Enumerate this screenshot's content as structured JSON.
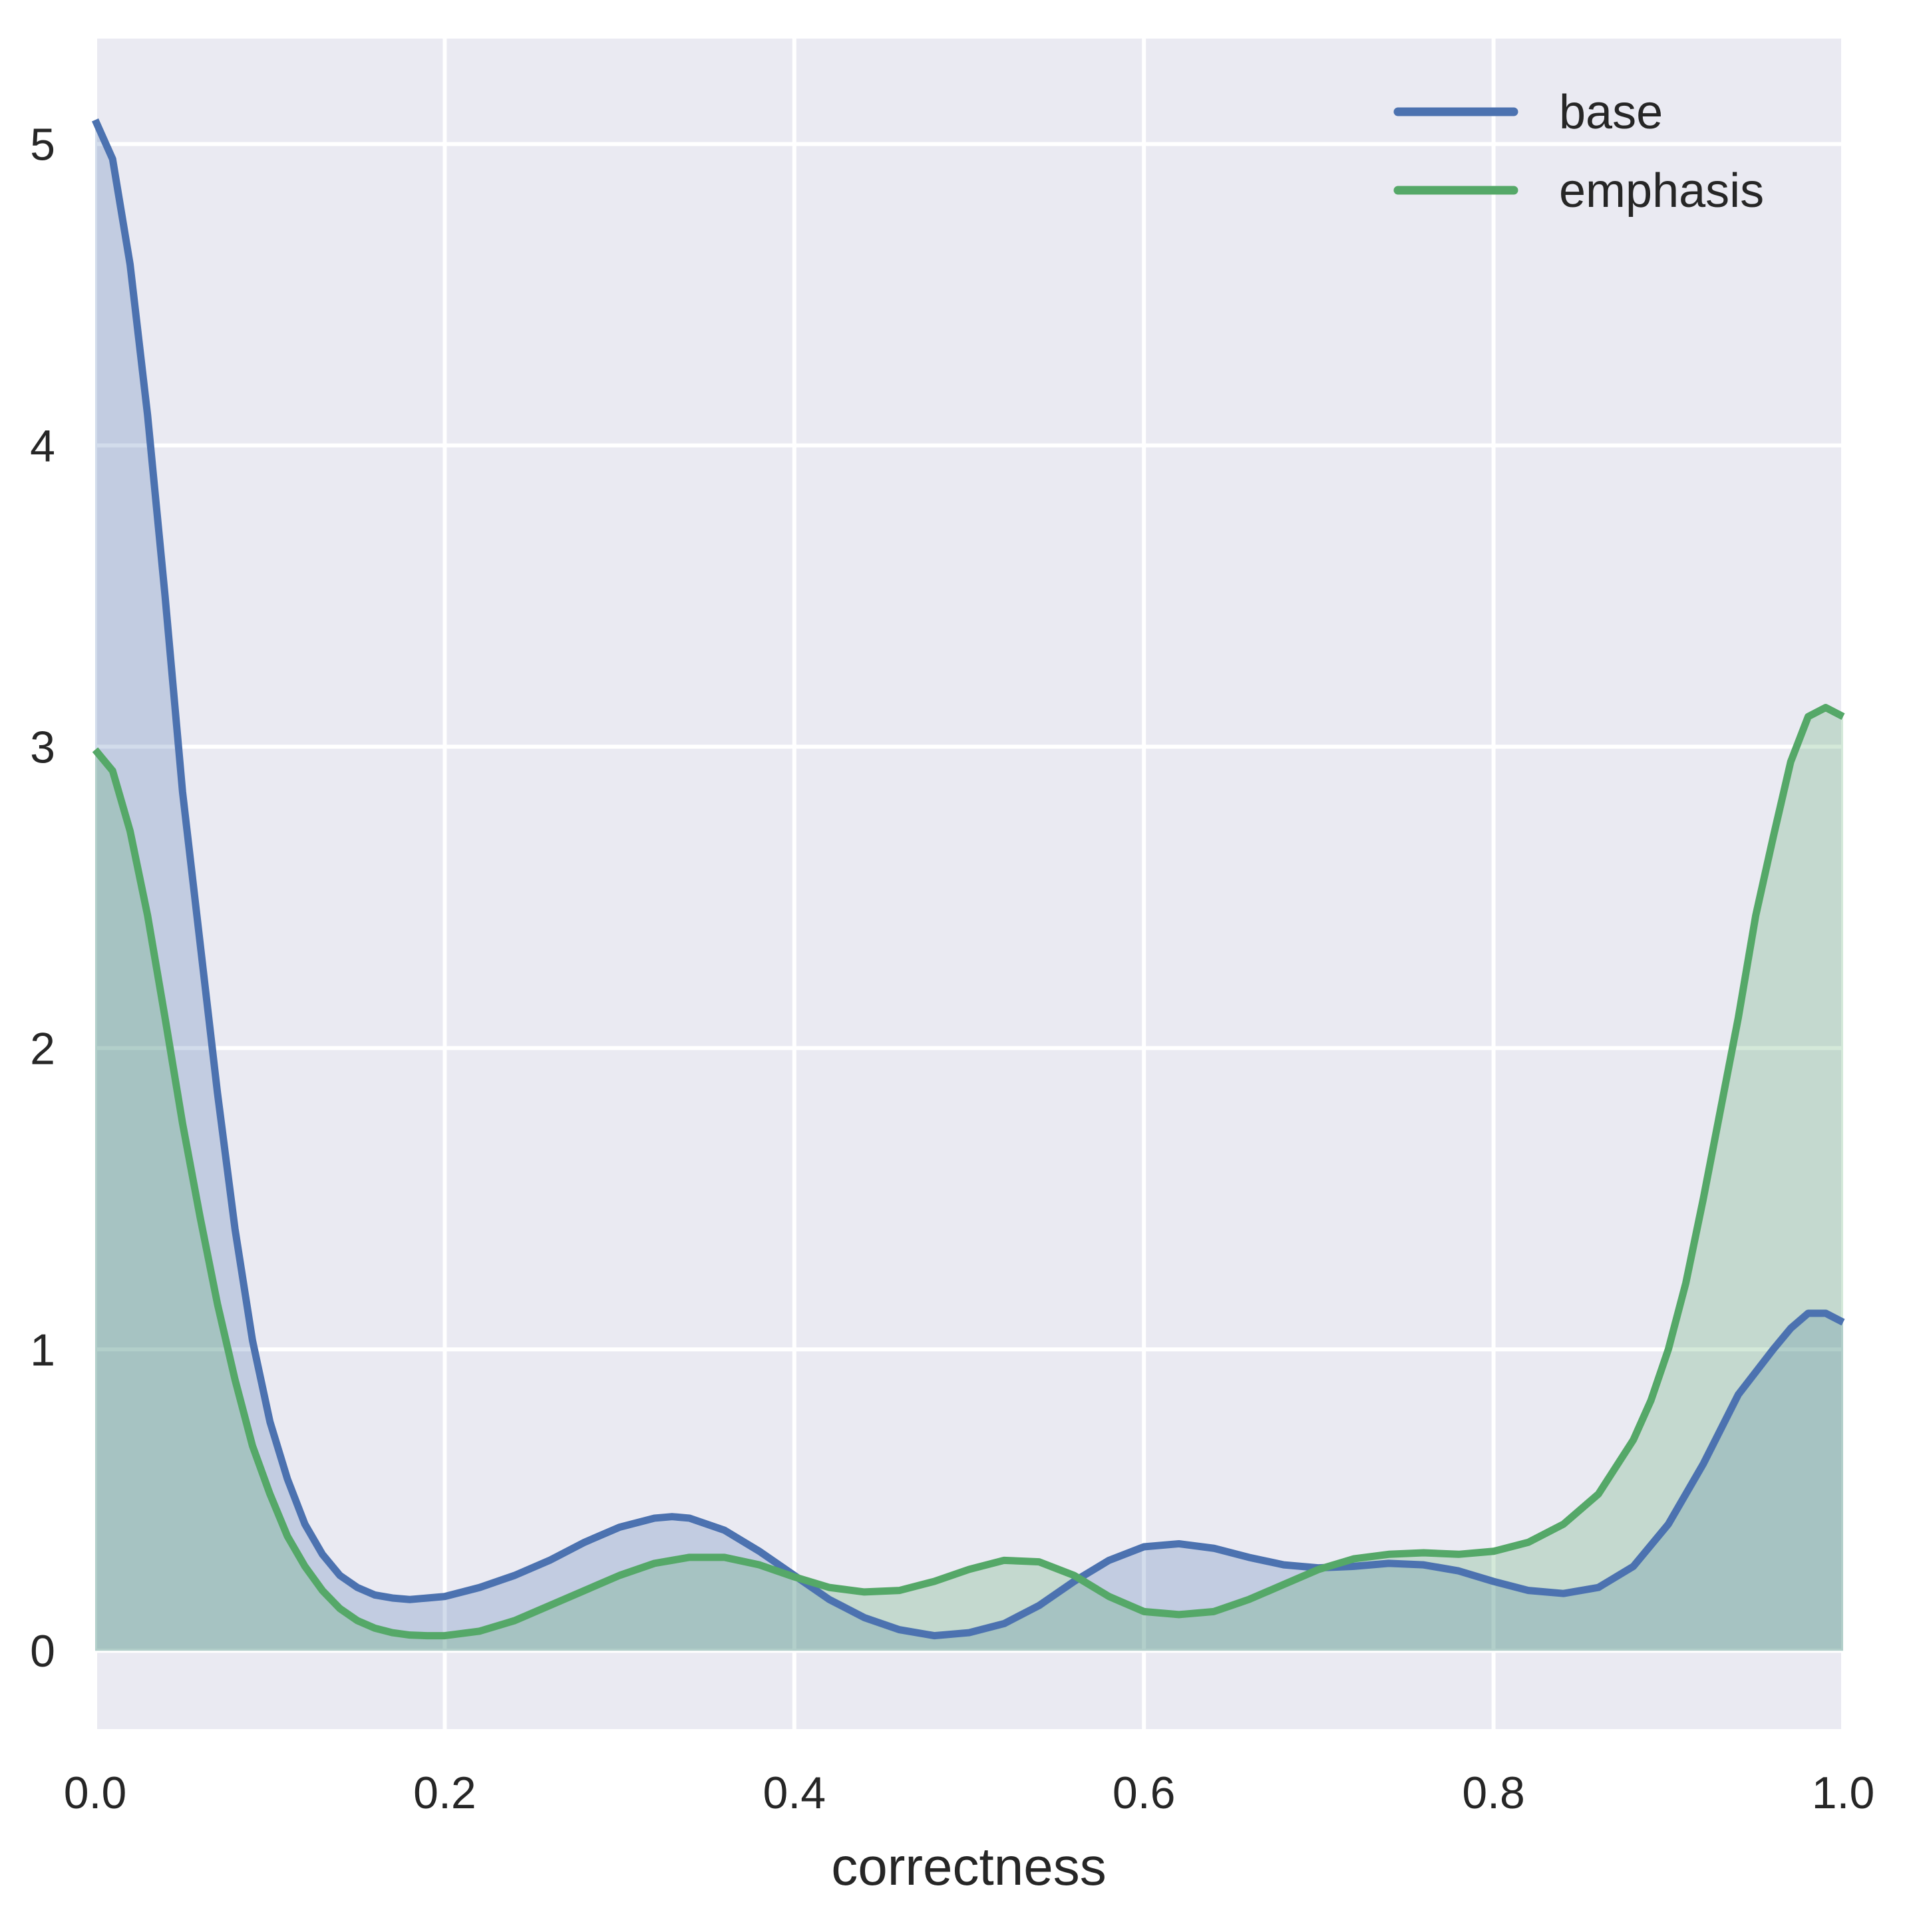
{
  "chart_data": {
    "type": "area",
    "xlabel": "correctness",
    "ylabel": "",
    "xlim": [
      0.0,
      1.0
    ],
    "ylim": [
      -0.26,
      5.35
    ],
    "x_ticks": [
      "0.0",
      "0.2",
      "0.4",
      "0.6",
      "0.8",
      "1.0"
    ],
    "y_ticks": [
      "0",
      "1",
      "2",
      "3",
      "4",
      "5"
    ],
    "grid": true,
    "legend_position": "top-right",
    "colors": {
      "background": "#EAEAF2",
      "grid": "#FFFFFF",
      "base": "#4C72B0",
      "emphasis": "#55A868",
      "text": "#262626"
    },
    "series": [
      {
        "name": "base",
        "x": [
          0,
          0.01,
          0.02,
          0.03,
          0.04,
          0.05,
          0.06,
          0.07,
          0.08,
          0.09,
          0.1,
          0.11,
          0.12,
          0.13,
          0.14,
          0.15,
          0.16,
          0.17,
          0.18,
          0.19,
          0.2,
          0.22,
          0.24,
          0.26,
          0.28,
          0.3,
          0.32,
          0.33,
          0.34,
          0.36,
          0.38,
          0.4,
          0.42,
          0.44,
          0.46,
          0.48,
          0.5,
          0.52,
          0.54,
          0.56,
          0.58,
          0.6,
          0.62,
          0.64,
          0.66,
          0.68,
          0.7,
          0.72,
          0.74,
          0.76,
          0.78,
          0.8,
          0.82,
          0.84,
          0.86,
          0.88,
          0.9,
          0.92,
          0.94,
          0.96,
          0.97,
          0.98,
          0.99,
          1.0
        ],
        "y": [
          5.08,
          4.95,
          4.6,
          4.1,
          3.5,
          2.85,
          2.35,
          1.85,
          1.4,
          1.03,
          0.76,
          0.57,
          0.42,
          0.32,
          0.25,
          0.21,
          0.185,
          0.175,
          0.17,
          0.175,
          0.18,
          0.21,
          0.25,
          0.3,
          0.36,
          0.41,
          0.44,
          0.445,
          0.44,
          0.4,
          0.33,
          0.25,
          0.17,
          0.11,
          0.07,
          0.05,
          0.06,
          0.09,
          0.15,
          0.23,
          0.3,
          0.345,
          0.355,
          0.34,
          0.31,
          0.285,
          0.275,
          0.28,
          0.29,
          0.285,
          0.265,
          0.23,
          0.2,
          0.19,
          0.21,
          0.28,
          0.42,
          0.62,
          0.85,
          1.0,
          1.07,
          1.12,
          1.12,
          1.09
        ]
      },
      {
        "name": "emphasis",
        "x": [
          0,
          0.01,
          0.02,
          0.03,
          0.04,
          0.05,
          0.06,
          0.07,
          0.08,
          0.09,
          0.1,
          0.11,
          0.12,
          0.13,
          0.14,
          0.15,
          0.16,
          0.17,
          0.18,
          0.19,
          0.2,
          0.22,
          0.24,
          0.26,
          0.28,
          0.3,
          0.32,
          0.34,
          0.36,
          0.38,
          0.4,
          0.42,
          0.44,
          0.46,
          0.48,
          0.5,
          0.52,
          0.54,
          0.56,
          0.58,
          0.6,
          0.62,
          0.64,
          0.66,
          0.68,
          0.7,
          0.72,
          0.74,
          0.76,
          0.78,
          0.8,
          0.82,
          0.84,
          0.86,
          0.88,
          0.89,
          0.9,
          0.91,
          0.92,
          0.93,
          0.94,
          0.95,
          0.96,
          0.97,
          0.98,
          0.99,
          1.0
        ],
        "y": [
          2.99,
          2.92,
          2.72,
          2.44,
          2.1,
          1.75,
          1.44,
          1.15,
          0.9,
          0.68,
          0.52,
          0.38,
          0.28,
          0.2,
          0.14,
          0.1,
          0.075,
          0.06,
          0.052,
          0.05,
          0.05,
          0.065,
          0.1,
          0.15,
          0.2,
          0.25,
          0.29,
          0.31,
          0.31,
          0.285,
          0.245,
          0.21,
          0.195,
          0.2,
          0.23,
          0.27,
          0.3,
          0.295,
          0.25,
          0.18,
          0.13,
          0.12,
          0.13,
          0.17,
          0.22,
          0.27,
          0.305,
          0.32,
          0.325,
          0.32,
          0.33,
          0.36,
          0.42,
          0.52,
          0.7,
          0.83,
          1.0,
          1.22,
          1.5,
          1.8,
          2.1,
          2.44,
          2.7,
          2.95,
          3.1,
          3.13,
          3.1
        ]
      }
    ]
  }
}
